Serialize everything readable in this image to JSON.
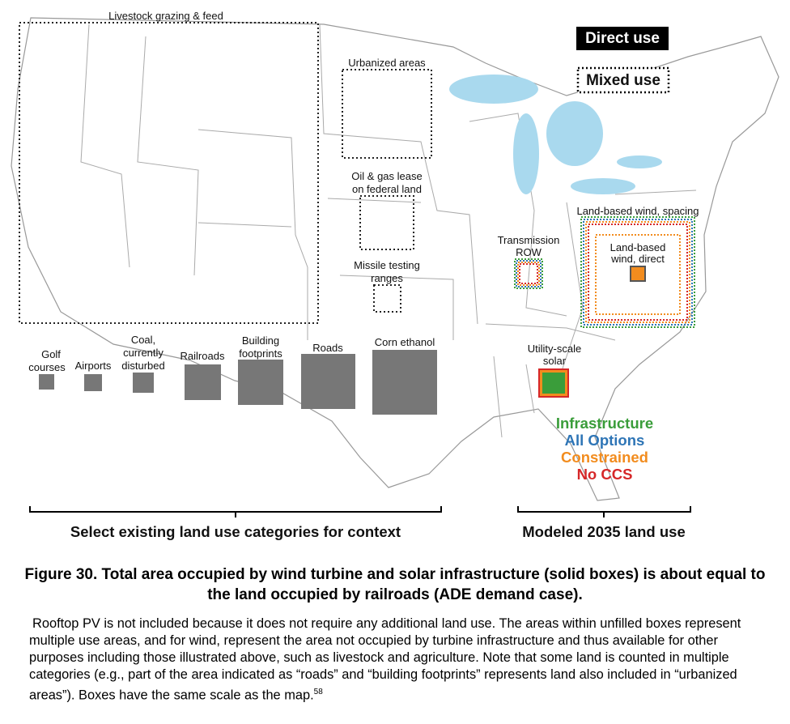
{
  "legend": {
    "direct": "Direct use",
    "mixed": "Mixed use"
  },
  "mixed_boxes": {
    "livestock": [
      "Livestock grazing & feed"
    ],
    "urbanized": [
      "Urbanized areas"
    ],
    "oil_gas": [
      "Oil & gas lease",
      "on federal land"
    ],
    "missile": [
      "Missile testing",
      "ranges"
    ]
  },
  "direct_boxes": {
    "golf": [
      "Golf",
      "courses"
    ],
    "airports": [
      "Airports"
    ],
    "coal": [
      "Coal,",
      "currently",
      "disturbed"
    ],
    "railroads": [
      "Railroads"
    ],
    "buildings": [
      "Building",
      "footprints"
    ],
    "roads": [
      "Roads"
    ],
    "corn": [
      "Corn ethanol"
    ]
  },
  "modeled": {
    "transmission": [
      "Transmission",
      "ROW"
    ],
    "wind_spacing": [
      "Land-based wind, spacing"
    ],
    "wind_direct": [
      "Land-based",
      "wind, direct"
    ],
    "solar": [
      "Utility-scale",
      "solar"
    ]
  },
  "scenarios": [
    {
      "name": "Infrastructure",
      "color": "#3a9d3a"
    },
    {
      "name": "All Options",
      "color": "#2e75b6"
    },
    {
      "name": "Constrained",
      "color": "#f28c1e"
    },
    {
      "name": "No CCS",
      "color": "#d62728"
    }
  ],
  "brackets": {
    "context": "Select existing land use categories for context",
    "modeled": "Modeled 2035 land use"
  },
  "caption": {
    "title": "Figure 30. Total area occupied by wind turbine and solar infrastructure (solid boxes) is about equal to the land occupied by railroads (ADE demand case).",
    "body": "Rooftop PV is not included because it does not require any additional land use. The areas within unfilled boxes represent multiple use areas, and for wind, represent the area not occupied by turbine infrastructure and thus available for other purposes including those illustrated above, such as livestock and agriculture. Note that some land is counted in multiple categories (e.g., part of the area indicated as “roads” and “building footprints” represents land also included in “urbanized areas”). Boxes have the same scale as the map.",
    "footnote": "58"
  }
}
